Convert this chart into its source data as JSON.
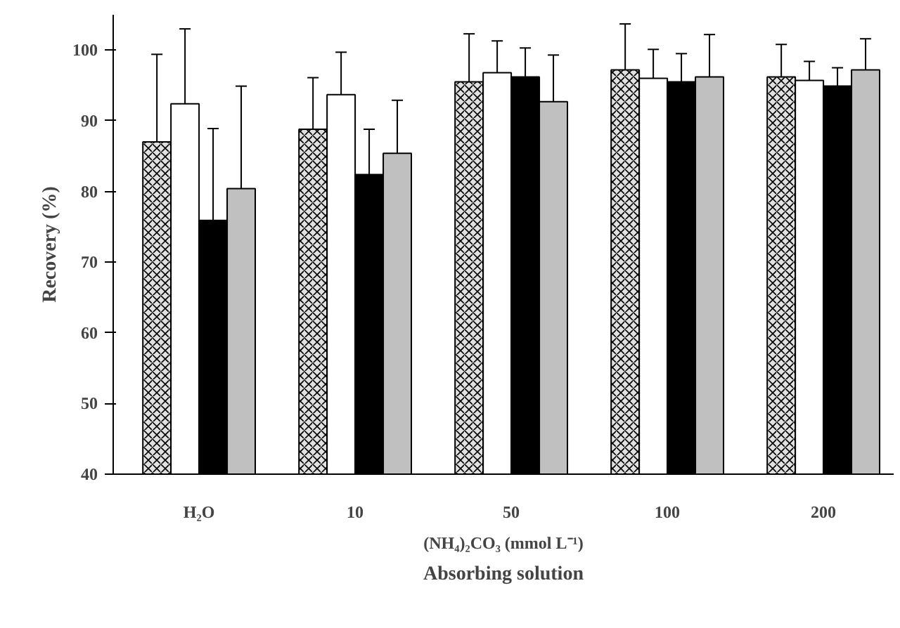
{
  "chart_data": {
    "type": "bar",
    "categories": [
      "H₂O",
      "10",
      "50",
      "100",
      "200"
    ],
    "series": [
      {
        "color": "#e0e0e0",
        "values": [
          87.0,
          88.8,
          95.5,
          97.2,
          96.2
        ],
        "errors": [
          12.4,
          7.3,
          6.8,
          6.5,
          4.6
        ]
      },
      {
        "color": "#ffffff",
        "values": [
          92.4,
          93.7,
          96.8,
          96.0,
          95.7
        ],
        "errors": [
          10.6,
          6.0,
          4.5,
          4.1,
          2.7
        ]
      },
      {
        "color": "#000000",
        "values": [
          75.9,
          82.4,
          96.2,
          95.5,
          94.9
        ],
        "errors": [
          13.0,
          6.4,
          4.1,
          4.0,
          2.6
        ]
      },
      {
        "color": "#c0c0c0",
        "values": [
          80.4,
          85.4,
          92.7,
          96.2,
          97.2
        ],
        "errors": [
          14.5,
          7.5,
          6.6,
          6.0,
          4.4
        ]
      }
    ],
    "ylim": [
      40,
      105
    ],
    "yticks": [
      40,
      50,
      60,
      70,
      80,
      90,
      100
    ],
    "xlabel": "Absorbing solution",
    "ylabel": "Recovery (%)",
    "annotations": [
      "(NH₄)₂CO₃ (mmol L⁻¹)"
    ]
  }
}
